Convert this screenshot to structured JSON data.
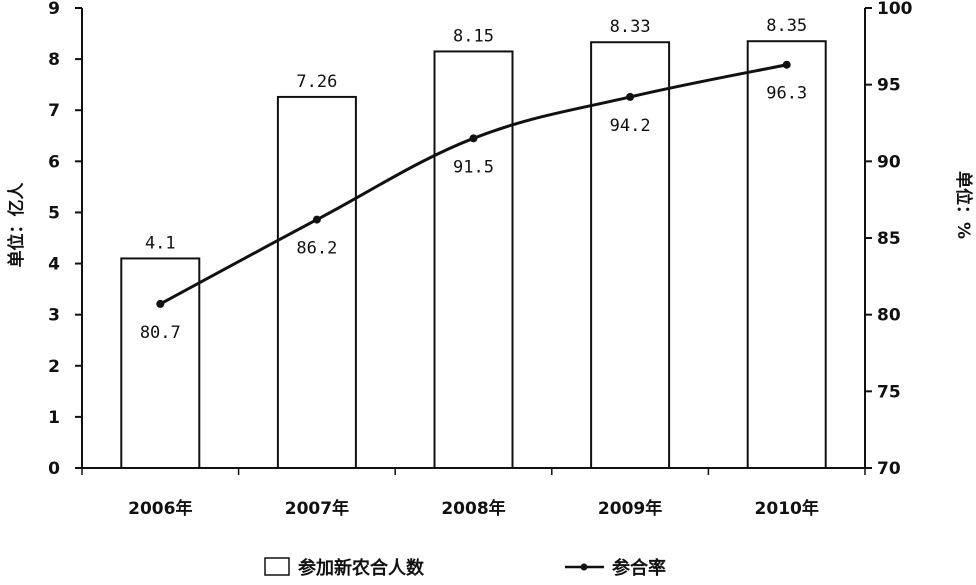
{
  "chart_data": {
    "type": "bar",
    "categories": [
      "2006年",
      "2007年",
      "2008年",
      "2009年",
      "2010年"
    ],
    "series": [
      {
        "name": "参加新农合人数",
        "type": "bar",
        "axis": "left",
        "values": [
          4.1,
          7.26,
          8.15,
          8.33,
          8.35
        ],
        "labels": [
          "4.1",
          "7.26",
          "8.15",
          "8.33",
          "8.35"
        ]
      },
      {
        "name": "参合率",
        "type": "line",
        "axis": "right",
        "values": [
          80.7,
          86.2,
          91.5,
          94.2,
          96.3
        ],
        "labels": [
          "80.7",
          "86.2",
          "91.5",
          "94.2",
          "96.3"
        ]
      }
    ],
    "left_axis": {
      "label": "单位：亿人",
      "ylim": [
        0,
        9
      ],
      "ticks": [
        "0",
        "1",
        "2",
        "3",
        "4",
        "5",
        "6",
        "7",
        "8",
        "9"
      ]
    },
    "right_axis": {
      "label": "单位：%",
      "ylim": [
        70,
        100
      ],
      "ticks": [
        "70",
        "75",
        "80",
        "85",
        "90",
        "95",
        "100"
      ]
    },
    "grid": false,
    "legend_position": "bottom"
  }
}
